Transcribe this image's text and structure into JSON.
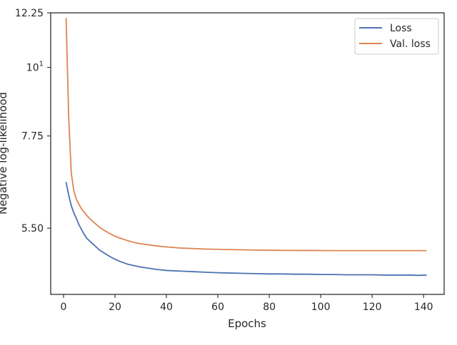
{
  "chart_data": {
    "type": "line",
    "title": "",
    "xlabel": "Epochs",
    "ylabel": "Negative log-likelihood",
    "xlim": [
      -5,
      148
    ],
    "ylim": [
      4.3,
      12.25
    ],
    "yscale": "log",
    "grid": false,
    "legend_position": "top-right",
    "x_ticks": [
      0,
      20,
      40,
      60,
      80,
      100,
      120,
      140
    ],
    "y_ticks": [
      {
        "value": 12.25,
        "label": "12.25"
      },
      {
        "value": 10,
        "label": "10",
        "superscript": "1"
      },
      {
        "value": 7.75,
        "label": "7.75"
      },
      {
        "value": 5.5,
        "label": "5.50"
      }
    ],
    "series": [
      {
        "name": "Loss",
        "color": "#4c72b0",
        "x": [
          1,
          2,
          3,
          4,
          5,
          6,
          7,
          8,
          9,
          10,
          12,
          14,
          16,
          18,
          20,
          22,
          25,
          28,
          30,
          33,
          36,
          40,
          45,
          50,
          55,
          60,
          65,
          70,
          75,
          80,
          85,
          90,
          95,
          100,
          105,
          110,
          115,
          120,
          125,
          130,
          135,
          138,
          141
        ],
        "y": [
          6.52,
          6.22,
          5.98,
          5.82,
          5.7,
          5.57,
          5.47,
          5.38,
          5.3,
          5.25,
          5.16,
          5.07,
          5.01,
          4.95,
          4.9,
          4.86,
          4.81,
          4.78,
          4.76,
          4.74,
          4.72,
          4.7,
          4.69,
          4.68,
          4.67,
          4.66,
          4.655,
          4.65,
          4.645,
          4.64,
          4.64,
          4.635,
          4.635,
          4.63,
          4.63,
          4.625,
          4.625,
          4.625,
          4.62,
          4.62,
          4.62,
          4.615,
          4.62
        ]
      },
      {
        "name": "Val. loss",
        "color": "#dd8452",
        "x": [
          1,
          2,
          3,
          4,
          5,
          6,
          7,
          8,
          9,
          10,
          12,
          14,
          16,
          18,
          20,
          22,
          25,
          28,
          30,
          33,
          36,
          40,
          45,
          50,
          55,
          60,
          65,
          70,
          75,
          80,
          85,
          90,
          95,
          100,
          105,
          110,
          115,
          120,
          125,
          130,
          135,
          138,
          141
        ],
        "y": [
          12.0,
          8.3,
          6.75,
          6.32,
          6.12,
          6.01,
          5.91,
          5.84,
          5.77,
          5.71,
          5.61,
          5.52,
          5.45,
          5.39,
          5.34,
          5.3,
          5.25,
          5.21,
          5.19,
          5.17,
          5.15,
          5.13,
          5.11,
          5.1,
          5.09,
          5.085,
          5.08,
          5.075,
          5.07,
          5.068,
          5.065,
          5.063,
          5.062,
          5.061,
          5.06,
          5.06,
          5.06,
          5.06,
          5.06,
          5.06,
          5.06,
          5.06,
          5.06
        ]
      }
    ]
  }
}
